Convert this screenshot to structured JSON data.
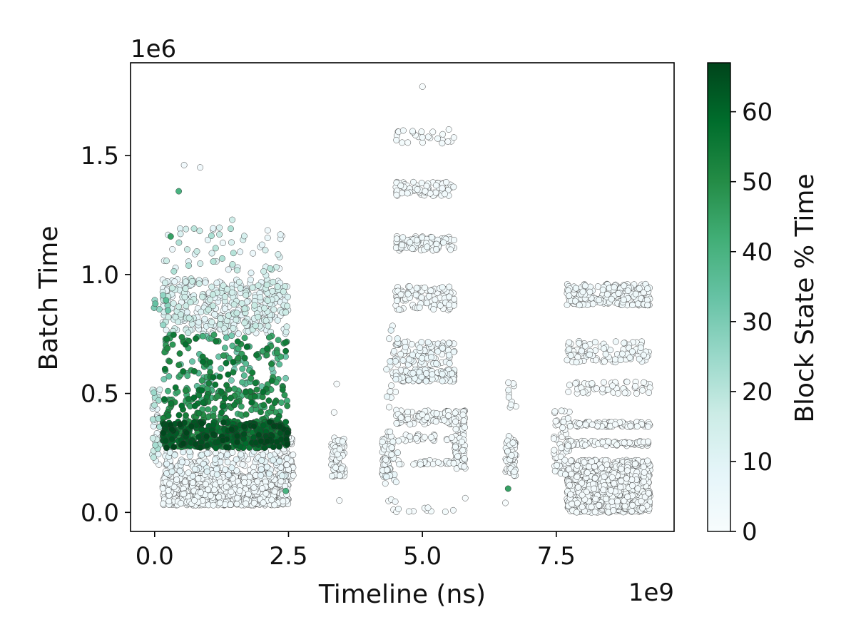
{
  "chart_data": {
    "type": "scatter",
    "title": "",
    "xlabel": "Timeline (ns)",
    "ylabel": "Batch Time",
    "x_multiplier_label": "1e9",
    "y_multiplier_label": "1e6",
    "xlim": [
      -0.45,
      9.7
    ],
    "ylim": [
      -0.08,
      1.89
    ],
    "xticks": [
      0.0,
      2.5,
      5.0,
      7.5
    ],
    "xtick_labels": [
      "0.0",
      "2.5",
      "5.0",
      "7.5"
    ],
    "yticks": [
      0.0,
      0.5,
      1.0,
      1.5
    ],
    "ytick_labels": [
      "0.0",
      "0.5",
      "1.0",
      "1.5"
    ],
    "grid": false,
    "colormap": {
      "name": "BuGn",
      "label": "Block State % Time",
      "range": [
        0,
        67
      ],
      "ticks": [
        0,
        10,
        20,
        30,
        40,
        50,
        60
      ],
      "tick_labels": [
        "0",
        "10",
        "20",
        "30",
        "40",
        "50",
        "60"
      ],
      "colors": [
        "#f7fcfd",
        "#e5f5f9",
        "#ccece6",
        "#99d8c9",
        "#66c2a4",
        "#41ae76",
        "#238b45",
        "#006d2c",
        "#00441b"
      ]
    },
    "marker_edge_color": "#333333",
    "clusters": [
      {
        "x": [
          -0.05,
          0.1
        ],
        "y": [
          0.2,
          0.52
        ],
        "n": 40,
        "c": [
          0,
          25
        ]
      },
      {
        "x": [
          0.15,
          2.5
        ],
        "y": [
          0.03,
          0.16
        ],
        "n": 1000,
        "c": [
          0,
          3
        ]
      },
      {
        "x": [
          0.15,
          2.5
        ],
        "y": [
          0.15,
          0.26
        ],
        "n": 180,
        "c": [
          0,
          10
        ]
      },
      {
        "x": [
          0.15,
          2.5
        ],
        "y": [
          0.27,
          0.38
        ],
        "n": 500,
        "c": [
          48,
          67
        ]
      },
      {
        "x": [
          0.15,
          2.5
        ],
        "y": [
          0.38,
          0.52
        ],
        "n": 160,
        "c": [
          40,
          58
        ]
      },
      {
        "x": [
          0.15,
          2.5
        ],
        "y": [
          0.52,
          0.75
        ],
        "n": 160,
        "c": [
          30,
          58
        ]
      },
      {
        "x": [
          0.15,
          2.5
        ],
        "y": [
          0.75,
          0.98
        ],
        "n": 380,
        "c": [
          3,
          18
        ]
      },
      {
        "x": [
          0.15,
          2.4
        ],
        "y": [
          0.98,
          1.2
        ],
        "n": 60,
        "c": [
          3,
          22
        ]
      },
      {
        "x": [
          0.0,
          0.3
        ],
        "y": [
          0.78,
          0.92
        ],
        "n": 8,
        "c": [
          25,
          38
        ]
      },
      {
        "x": [
          2.38,
          2.6
        ],
        "y": [
          0.14,
          0.32
        ],
        "n": 60,
        "c": [
          0,
          3
        ]
      },
      {
        "x": [
          3.3,
          3.55
        ],
        "y": [
          0.15,
          0.32
        ],
        "n": 80,
        "c": [
          0,
          4
        ]
      },
      {
        "x": [
          4.25,
          4.45
        ],
        "y": [
          0.15,
          0.34
        ],
        "n": 80,
        "c": [
          0,
          4
        ]
      },
      {
        "x": [
          4.3,
          4.55
        ],
        "y": [
          0.0,
          0.8
        ],
        "n": 40,
        "c": [
          0,
          8
        ]
      },
      {
        "x": [
          4.5,
          5.6
        ],
        "y": [
          0.0,
          0.02
        ],
        "n": 10,
        "c": [
          0,
          3
        ]
      },
      {
        "x": [
          4.5,
          5.6
        ],
        "y": [
          0.2,
          0.22
        ],
        "n": 30,
        "c": [
          0,
          3
        ]
      },
      {
        "x": [
          4.5,
          5.6
        ],
        "y": [
          0.3,
          0.33
        ],
        "n": 30,
        "c": [
          0,
          3
        ]
      },
      {
        "x": [
          4.5,
          5.6
        ],
        "y": [
          0.37,
          0.43
        ],
        "n": 80,
        "c": [
          0,
          3
        ]
      },
      {
        "x": [
          4.5,
          5.6
        ],
        "y": [
          0.55,
          0.6
        ],
        "n": 120,
        "c": [
          0,
          6
        ]
      },
      {
        "x": [
          4.5,
          5.6
        ],
        "y": [
          0.62,
          0.72
        ],
        "n": 100,
        "c": [
          0,
          6
        ]
      },
      {
        "x": [
          4.5,
          5.6
        ],
        "y": [
          0.85,
          0.95
        ],
        "n": 100,
        "c": [
          0,
          4
        ]
      },
      {
        "x": [
          4.5,
          5.6
        ],
        "y": [
          1.1,
          1.16
        ],
        "n": 100,
        "c": [
          0,
          4
        ]
      },
      {
        "x": [
          4.5,
          5.6
        ],
        "y": [
          1.33,
          1.39
        ],
        "n": 70,
        "c": [
          0,
          3
        ]
      },
      {
        "x": [
          4.5,
          5.6
        ],
        "y": [
          1.55,
          1.61
        ],
        "n": 25,
        "c": [
          0,
          3
        ]
      },
      {
        "x": [
          5.6,
          5.8
        ],
        "y": [
          0.18,
          0.43
        ],
        "n": 80,
        "c": [
          0,
          3
        ]
      },
      {
        "x": [
          6.55,
          6.75
        ],
        "y": [
          0.15,
          0.32
        ],
        "n": 60,
        "c": [
          0,
          4
        ]
      },
      {
        "x": [
          6.6,
          6.75
        ],
        "y": [
          0.4,
          0.55
        ],
        "n": 10,
        "c": [
          0,
          4
        ]
      },
      {
        "x": [
          7.45,
          7.75
        ],
        "y": [
          0.15,
          0.43
        ],
        "n": 60,
        "c": [
          0,
          3
        ]
      },
      {
        "x": [
          7.7,
          9.25
        ],
        "y": [
          0.0,
          0.2
        ],
        "n": 1200,
        "c": [
          0,
          2
        ]
      },
      {
        "x": [
          7.7,
          9.25
        ],
        "y": [
          0.2,
          0.22
        ],
        "n": 80,
        "c": [
          0,
          2
        ]
      },
      {
        "x": [
          7.7,
          9.25
        ],
        "y": [
          0.28,
          0.3
        ],
        "n": 80,
        "c": [
          0,
          2
        ]
      },
      {
        "x": [
          7.7,
          9.25
        ],
        "y": [
          0.36,
          0.38
        ],
        "n": 80,
        "c": [
          0,
          2
        ]
      },
      {
        "x": [
          7.7,
          9.25
        ],
        "y": [
          0.5,
          0.55
        ],
        "n": 50,
        "c": [
          0,
          2
        ]
      },
      {
        "x": [
          7.7,
          9.25
        ],
        "y": [
          0.63,
          0.72
        ],
        "n": 100,
        "c": [
          0,
          4
        ]
      },
      {
        "x": [
          7.7,
          9.25
        ],
        "y": [
          0.87,
          0.96
        ],
        "n": 220,
        "c": [
          0,
          4
        ]
      }
    ],
    "outliers": [
      {
        "x": 5.0,
        "y": 1.79,
        "c": 0
      },
      {
        "x": 0.55,
        "y": 1.46,
        "c": 3
      },
      {
        "x": 0.85,
        "y": 1.45,
        "c": 3
      },
      {
        "x": 0.45,
        "y": 1.35,
        "c": 40
      },
      {
        "x": 1.45,
        "y": 1.23,
        "c": 15
      },
      {
        "x": 0.3,
        "y": 1.16,
        "c": 45
      },
      {
        "x": 2.35,
        "y": 1.15,
        "c": 5
      },
      {
        "x": -0.01,
        "y": 0.86,
        "c": 30
      },
      {
        "x": 3.4,
        "y": 0.54,
        "c": 0
      },
      {
        "x": 3.35,
        "y": 0.42,
        "c": 0
      },
      {
        "x": 3.45,
        "y": 0.05,
        "c": 0
      },
      {
        "x": 6.6,
        "y": 0.1,
        "c": 45
      },
      {
        "x": 6.55,
        "y": 0.04,
        "c": 0
      },
      {
        "x": 5.8,
        "y": 0.06,
        "c": 0
      },
      {
        "x": 2.45,
        "y": 0.09,
        "c": 40
      }
    ]
  }
}
